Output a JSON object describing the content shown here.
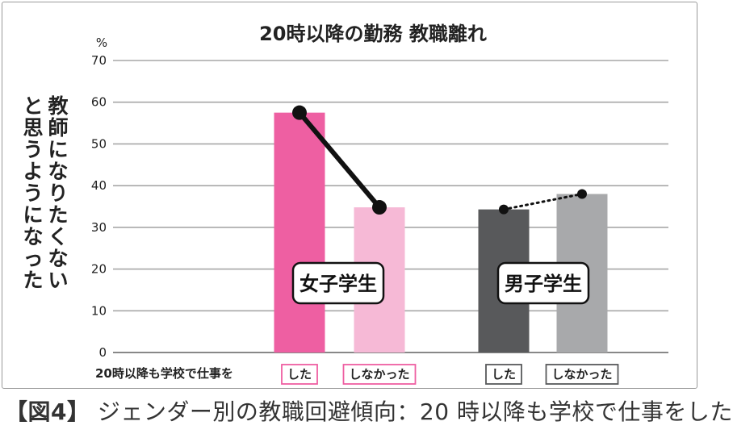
{
  "chart_data": {
    "type": "bar",
    "title": "20時以降の勤務 教職離れ",
    "ylabel": "教師になりたくないと思うようになった",
    "yunit": "%",
    "ylim": [
      0,
      70
    ],
    "yticks": [
      0,
      10,
      20,
      30,
      40,
      50,
      60,
      70
    ],
    "grid": true,
    "row_label": "20時以降も学校で仕事を",
    "groups": [
      {
        "name": "女子学生",
        "categories": [
          "した",
          "しなかった"
        ],
        "values": [
          57.5,
          34.8
        ],
        "colors": [
          "#ee5fa2",
          "#f6b9d6"
        ],
        "connector": "solid"
      },
      {
        "name": "男子学生",
        "categories": [
          "した",
          "しなかった"
        ],
        "values": [
          34.3,
          38.0
        ],
        "colors": [
          "#58595b",
          "#a8a9ab"
        ],
        "connector": "dotted"
      }
    ]
  },
  "caption": {
    "prefix": "【図4】",
    "text": "ジェンダー別の教職回避傾向：20 時以降も学校で仕事をした"
  }
}
